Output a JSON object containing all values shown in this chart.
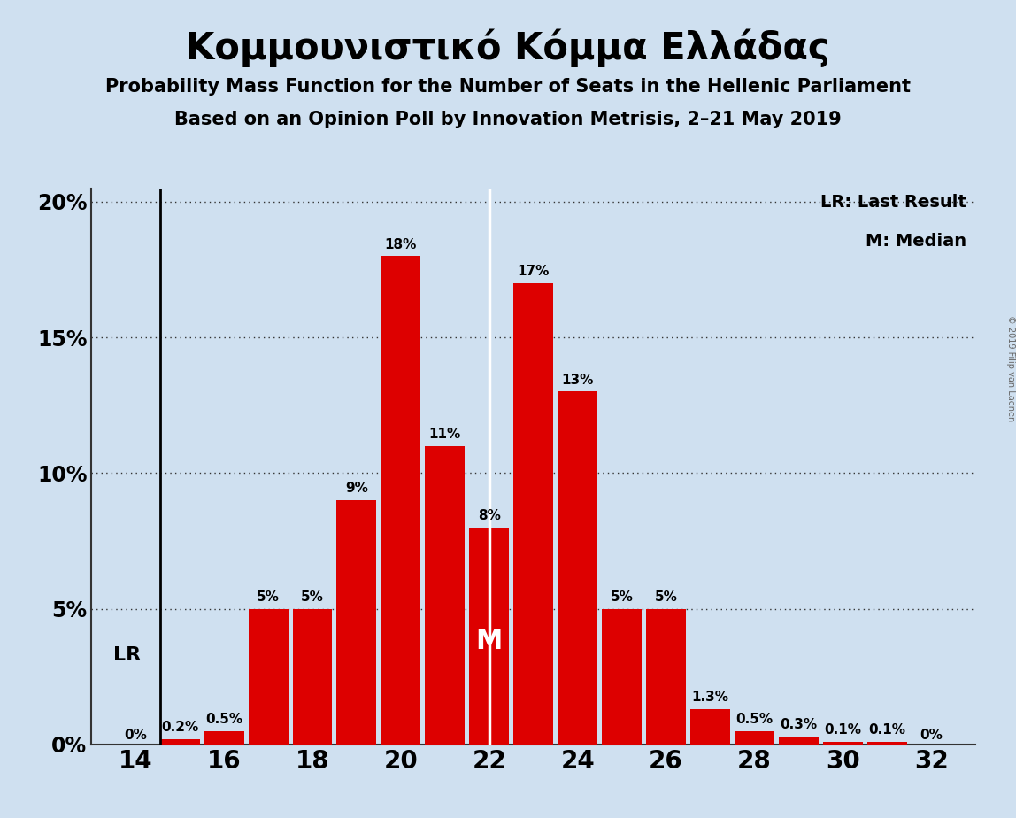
{
  "title": "Κομμουνιστικό Κόμμα Ελλάδας",
  "subtitle1": "Probability Mass Function for the Number of Seats in the Hellenic Parliament",
  "subtitle2": "Based on an Opinion Poll by Innovation Metrisis, 2–21 May 2019",
  "copyright": "© 2019 Filip van Laenen",
  "seats": [
    14,
    15,
    16,
    17,
    18,
    19,
    20,
    21,
    22,
    23,
    24,
    25,
    26,
    27,
    28,
    29,
    30,
    31,
    32
  ],
  "probabilities": [
    0.0,
    0.002,
    0.005,
    0.05,
    0.05,
    0.09,
    0.18,
    0.11,
    0.08,
    0.17,
    0.13,
    0.05,
    0.05,
    0.013,
    0.005,
    0.003,
    0.001,
    0.001,
    0.0
  ],
  "bar_color": "#dd0000",
  "bg_color": "#cfe0f0",
  "text_color": "#000000",
  "lr_seat": 15,
  "median_seat": 22,
  "yticks": [
    0.0,
    0.05,
    0.1,
    0.15,
    0.2
  ],
  "ytick_labels": [
    "0%",
    "5%",
    "10%",
    "15%",
    "20%"
  ],
  "xticks": [
    14,
    16,
    18,
    20,
    22,
    24,
    26,
    28,
    30,
    32
  ],
  "xlim": [
    13.0,
    33.0
  ],
  "ylim": [
    0,
    0.205
  ],
  "legend_text1": "LR: Last Result",
  "legend_text2": "M: Median",
  "lr_label": "LR",
  "median_label": "M",
  "bar_labels": [
    "0%",
    "0.2%",
    "0.5%",
    "5%",
    "5%",
    "9%",
    "18%",
    "11%",
    "8%",
    "17%",
    "13%",
    "5%",
    "5%",
    "1.3%",
    "0.5%",
    "0.3%",
    "0.1%",
    "0.1%",
    "0%"
  ]
}
